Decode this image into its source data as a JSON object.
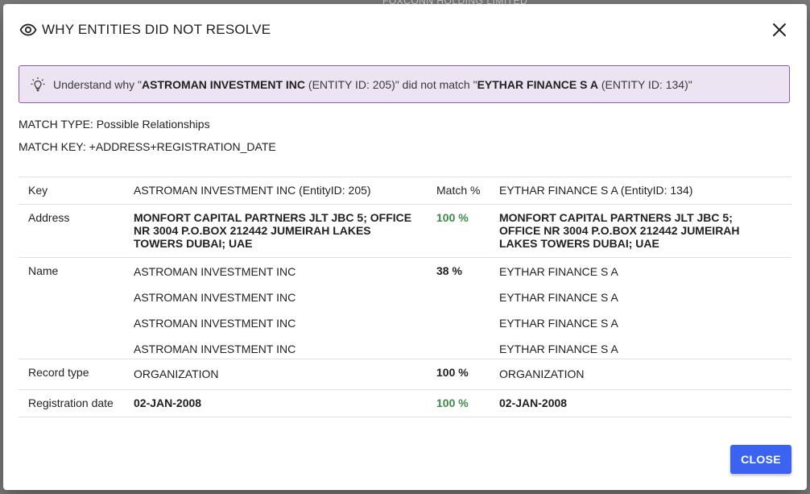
{
  "backdrop": {
    "text": "FOXCONN HOLDING LIMITED"
  },
  "dialog": {
    "title": "WHY ENTITIES DID NOT RESOLVE",
    "close_label": "CLOSE"
  },
  "banner": {
    "prefix": "Understand why \"",
    "left_entity": "ASTROMAN INVESTMENT INC",
    "left_id": " (ENTITY ID: 205)\"",
    "middle": " did not match \"",
    "right_entity": "EYTHAR FINANCE S A",
    "right_id": " (ENTITY ID: 134)\""
  },
  "match": {
    "type_line": "MATCH TYPE: Possible Relationships",
    "key_line": "MATCH KEY: +ADDRESS+REGISTRATION_DATE"
  },
  "table": {
    "header": {
      "key": "Key",
      "left": "ASTROMAN INVESTMENT INC (EntityID: 205)",
      "match": "Match %",
      "right": "EYTHAR FINANCE S A (EntityID: 134)"
    },
    "address": {
      "key": "Address",
      "left": "MONFORT CAPITAL PARTNERS JLT JBC 5; OFFICE NR 3004 P.O.BOX 212442 JUMEIRAH LAKES TOWERS DUBAI; UAE",
      "match": "100 %",
      "right": "MONFORT CAPITAL PARTNERS JLT JBC 5; OFFICE NR 3004 P.O.BOX 212442 JUMEIRAH LAKES TOWERS DUBAI; UAE"
    },
    "name": {
      "key": "Name",
      "left": [
        "ASTROMAN INVESTMENT INC",
        "ASTROMAN INVESTMENT INC",
        "ASTROMAN INVESTMENT INC",
        "ASTROMAN INVESTMENT INC"
      ],
      "match": "38 %",
      "right": [
        "EYTHAR FINANCE S A",
        "EYTHAR FINANCE S A",
        "EYTHAR FINANCE S A",
        "EYTHAR FINANCE S A"
      ]
    },
    "record_type": {
      "key": "Record type",
      "left": "ORGANIZATION",
      "match": "100 %",
      "right": "ORGANIZATION"
    },
    "registration_date": {
      "key": "Registration date",
      "left": "02-JAN-2008",
      "match": "100 %",
      "right": "02-JAN-2008"
    }
  },
  "colors": {
    "primary_button": "#3c63f0",
    "banner_bg": "#ede4f3",
    "banner_border": "#8a5aa6",
    "match_full": "#3c8a4a"
  },
  "icons": {
    "title": "eye-icon",
    "close": "close-icon",
    "banner": "lightbulb-icon"
  }
}
